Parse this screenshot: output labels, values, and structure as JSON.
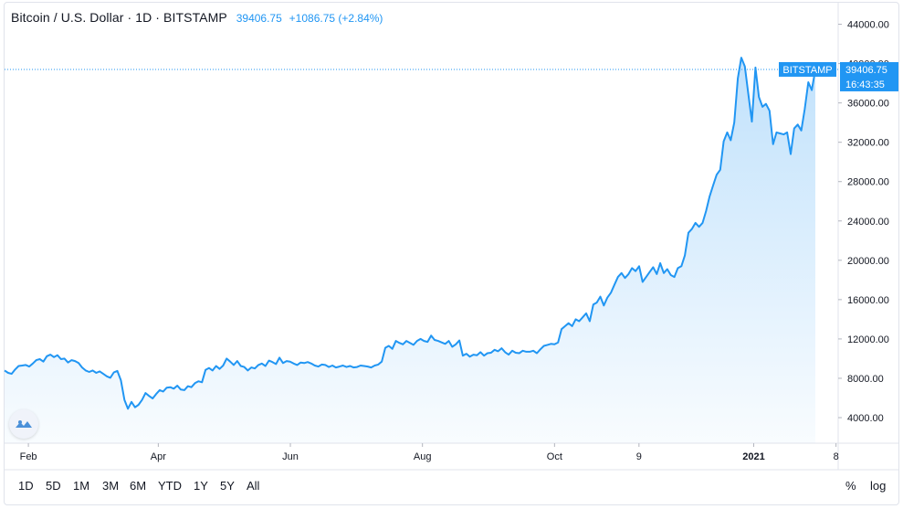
{
  "legend": {
    "symbol": "Bitcoin / U.S. Dollar · 1D · BITSTAMP",
    "last": "39406.75",
    "change": "+1086.75 (+2.84%)"
  },
  "price_axis": {
    "ticks": [
      "44000.00",
      "40000.00",
      "36000.00",
      "32000.00",
      "28000.00",
      "24000.00",
      "20000.00",
      "16000.00",
      "12000.00",
      "8000.00",
      "4000.00"
    ],
    "exchange_label": "BITSTAMP",
    "last_label": "39406.75",
    "countdown": "16:43:35"
  },
  "time_axis": {
    "ticks": [
      "Feb",
      "Apr",
      "Jun",
      "Aug",
      "Oct",
      "9",
      "2021",
      "8"
    ]
  },
  "toolbar": {
    "ranges": [
      "1D",
      "5D",
      "1M",
      "3M",
      "6M",
      "YTD",
      "1Y",
      "5Y",
      "All"
    ],
    "percent": "%",
    "log": "log"
  },
  "colors": {
    "line": "#2196f3",
    "accent": "#2196f3",
    "text": "#131722"
  },
  "chart_data": {
    "type": "area",
    "series": [
      {
        "values": [
          8800,
          8550,
          8450,
          8900,
          9250,
          9300,
          9350,
          9200,
          9500,
          9850,
          9950,
          9700,
          10250,
          10400,
          10150,
          10350,
          9950,
          10000,
          9600,
          9850,
          9750,
          9550,
          9100,
          8800,
          8650,
          8800,
          8550,
          8700,
          8450,
          8200,
          8050,
          8600,
          8750,
          7800,
          5800,
          4900,
          5600,
          5050,
          5300,
          5800,
          6500,
          6200,
          5950,
          6400,
          6800,
          6650,
          7050,
          7100,
          6950,
          7250,
          6850,
          6800,
          7200,
          7100,
          7500,
          7700,
          7600,
          8850,
          9050,
          8800,
          9250,
          8950,
          9300,
          10000,
          9700,
          9350,
          9750,
          9250,
          9150,
          8800,
          9100,
          9000,
          9350,
          9500,
          9250,
          9800,
          9650,
          9450,
          10100,
          9550,
          9750,
          9700,
          9500,
          9350,
          9600,
          9550,
          9650,
          9500,
          9300,
          9200,
          9400,
          9350,
          9150,
          9300,
          9100,
          9200,
          9300,
          9150,
          9250,
          9100,
          9150,
          9300,
          9250,
          9200,
          9100,
          9300,
          9400,
          9700,
          11100,
          11300,
          11000,
          11800,
          11600,
          11450,
          11800,
          11600,
          11400,
          11800,
          12000,
          11800,
          11700,
          12350,
          11900,
          11800,
          11650,
          11500,
          11800,
          11200,
          11450,
          11850,
          10300,
          10500,
          10200,
          10400,
          10350,
          10650,
          10300,
          10550,
          10600,
          10900,
          10750,
          11050,
          10650,
          10400,
          10800,
          10600,
          10550,
          10800,
          10700,
          10700,
          10800,
          10550,
          10950,
          11300,
          11400,
          11500,
          11450,
          11650,
          13000,
          13300,
          13600,
          13300,
          14000,
          13800,
          14200,
          14600,
          13800,
          15500,
          15700,
          16300,
          15400,
          16200,
          16700,
          17500,
          18300,
          18700,
          18200,
          18600,
          19200,
          18900,
          19400,
          17800,
          18300,
          18800,
          19300,
          18600,
          19700,
          18700,
          19100,
          18500,
          18300,
          19200,
          19400,
          20500,
          22800,
          23200,
          23800,
          23400,
          23800,
          25000,
          26500,
          27600,
          28700,
          29200,
          32100,
          33000,
          32200,
          34000,
          38500,
          40600,
          39700,
          36900,
          34100,
          39600,
          36600,
          35600,
          35900,
          35200,
          31800,
          33000,
          32900,
          32800,
          33000,
          30800,
          33400,
          33800,
          33200,
          35400,
          38100,
          37300,
          39406.75
        ]
      }
    ],
    "xlim": [
      "2020-01-21",
      "2021-02-09"
    ],
    "ylim": [
      1400,
      46000
    ]
  }
}
